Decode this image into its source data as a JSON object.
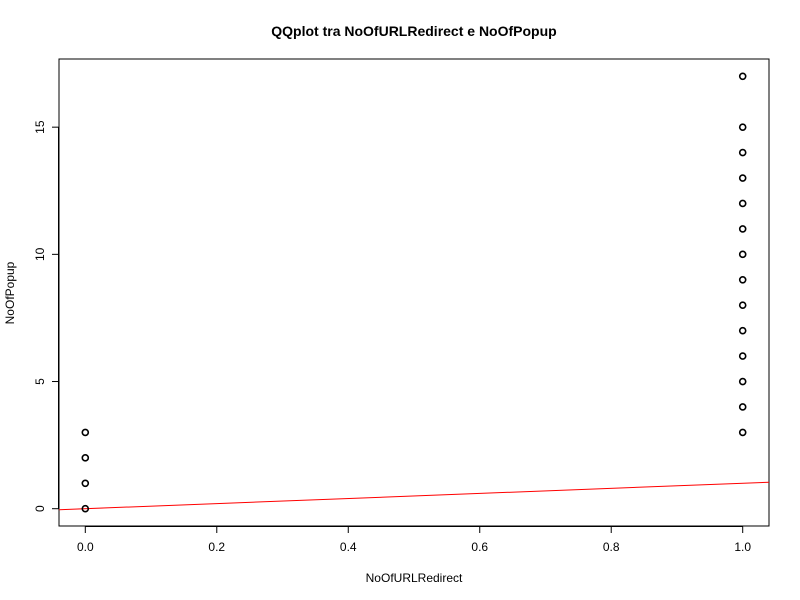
{
  "chart_data": {
    "type": "scatter",
    "title": "QQplot tra NoOfURLRedirect e NoOfPopup",
    "xlabel": "NoOfURLRedirect",
    "ylabel": "NoOfPopup",
    "xlim": [
      -0.04,
      1.04
    ],
    "ylim": [
      -0.68,
      17.68
    ],
    "x_ticks": [
      0,
      0.2,
      0.4,
      0.6,
      0.8,
      1
    ],
    "x_tick_labels": [
      "0.0",
      "0.2",
      "0.4",
      "0.6",
      "0.8",
      "1.0"
    ],
    "y_ticks": [
      0,
      5,
      10,
      15
    ],
    "y_tick_labels": [
      "0",
      "5",
      "10",
      "15"
    ],
    "grid": false,
    "marker": "open-circle",
    "series": [
      {
        "points": [
          {
            "x": 0,
            "y": 0
          },
          {
            "x": 0,
            "y": 1
          },
          {
            "x": 0,
            "y": 2
          },
          {
            "x": 0,
            "y": 3
          },
          {
            "x": 1,
            "y": 3
          },
          {
            "x": 1,
            "y": 4
          },
          {
            "x": 1,
            "y": 5
          },
          {
            "x": 1,
            "y": 6
          },
          {
            "x": 1,
            "y": 7
          },
          {
            "x": 1,
            "y": 8
          },
          {
            "x": 1,
            "y": 9
          },
          {
            "x": 1,
            "y": 10
          },
          {
            "x": 1,
            "y": 11
          },
          {
            "x": 1,
            "y": 12
          },
          {
            "x": 1,
            "y": 13
          },
          {
            "x": 1,
            "y": 14
          },
          {
            "x": 1,
            "y": 15
          },
          {
            "x": 1,
            "y": 17
          }
        ]
      }
    ],
    "reference_line": {
      "intercept": 0,
      "slope": 1,
      "color": "#ff0000"
    }
  }
}
